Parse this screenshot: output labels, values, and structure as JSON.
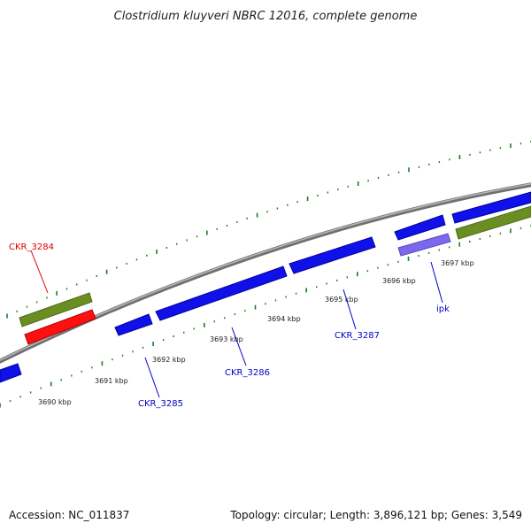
{
  "title": "Clostridium kluyveri NBRC 12016, complete genome",
  "footer": {
    "accession": "Accession: NC_011837",
    "summary": "Topology: circular; Length: 3,896,121 bp; Genes: 3,549"
  },
  "colors": {
    "backbone": "#808080",
    "tick": "#1f7a1f",
    "gene_blue": "#1010e8",
    "gene_green": "#6b8e23",
    "gene_red": "#ff1010",
    "gene_purple": "#7b68ee",
    "label_blue": "#0000cc",
    "label_red": "#dd0000"
  },
  "scale_labels": [
    "3690 kbp",
    "3691 kbp",
    "3692 kbp",
    "3693 kbp",
    "3694 kbp",
    "3695 kbp",
    "3696 kbp",
    "3697 kbp"
  ],
  "gene_labels": [
    {
      "id": "CKR_3284",
      "color": "red"
    },
    {
      "id": "CKR_3285",
      "color": "blue"
    },
    {
      "id": "CKR_3286",
      "color": "blue"
    },
    {
      "id": "CKR_3287",
      "color": "blue"
    },
    {
      "id": "ipk",
      "color": "blue"
    }
  ]
}
